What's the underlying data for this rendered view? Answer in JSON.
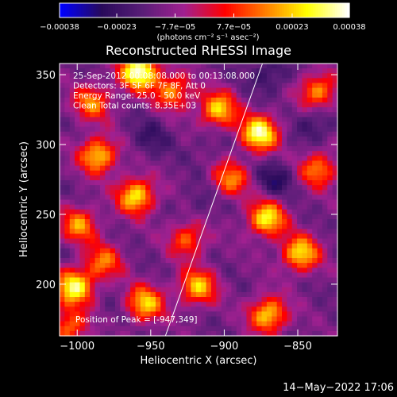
{
  "chart_data": {
    "type": "heatmap",
    "title": "Reconstructed RHESSI Image",
    "xlabel": "Heliocentric X (arcsec)",
    "ylabel": "Heliocentric Y (arcsec)",
    "xlim": [
      -1012,
      -823
    ],
    "ylim": [
      163,
      358
    ],
    "x_ticks": [
      -1000,
      -950,
      -900,
      -850
    ],
    "x_tick_labels": [
      "−1000",
      "−950",
      "−900",
      "−850"
    ],
    "y_ticks": [
      200,
      250,
      300,
      350
    ],
    "y_tick_labels": [
      "200",
      "250",
      "300",
      "350"
    ],
    "colorbar": {
      "min": -0.00038,
      "max": 0.00038,
      "ticks": [
        -0.00038,
        -0.00023,
        -7.7e-05,
        7.7e-05,
        0.00023,
        0.00038
      ],
      "tick_labels": [
        "−0.00038",
        "−0.00023",
        "−7.7e−05",
        "7.7e−05",
        "0.00023",
        "0.00038"
      ],
      "unit_text": "(photons cm⁻² s⁻¹ asec⁻²)",
      "colormap": [
        "#0000ff",
        "#280a5a",
        "#5a1e78",
        "#a02090",
        "#ff0000",
        "#ff8000",
        "#ffff00",
        "#ffffff"
      ]
    },
    "annotations": [
      "25-Sep-2012 00:08:08.000 to 00:13:08.000",
      "Detectors: 3F 5F 6F 7F 8F, Att 0",
      "Energy Range: 25.0 - 50.0 keV",
      "Clean     Total counts: 8.35E+03"
    ],
    "peak_label": "Position of Peak = [-947,349]",
    "limb_line": [
      [
        -940,
        163
      ],
      [
        -874,
        358
      ]
    ],
    "grid": false,
    "hotspots": [
      {
        "x": -958,
        "y": 352,
        "value": 0.00038
      },
      {
        "x": -876,
        "y": 308,
        "value": 0.00034
      },
      {
        "x": -986,
        "y": 292,
        "value": 0.00025
      },
      {
        "x": -904,
        "y": 325,
        "value": 0.00024
      },
      {
        "x": -960,
        "y": 263,
        "value": 0.00027
      },
      {
        "x": -871,
        "y": 247,
        "value": 0.00028
      },
      {
        "x": -848,
        "y": 222,
        "value": 0.00026
      },
      {
        "x": -1002,
        "y": 198,
        "value": 0.00031
      },
      {
        "x": -954,
        "y": 186,
        "value": 0.00024
      },
      {
        "x": -918,
        "y": 198,
        "value": 0.00022
      },
      {
        "x": -870,
        "y": 178,
        "value": 0.00025
      },
      {
        "x": -999,
        "y": 242,
        "value": 0.00018
      },
      {
        "x": -935,
        "y": 338,
        "value": 0.00017
      },
      {
        "x": -990,
        "y": 330,
        "value": 0.00016
      },
      {
        "x": -836,
        "y": 338,
        "value": 0.00018
      },
      {
        "x": -836,
        "y": 282,
        "value": 0.00017
      },
      {
        "x": -896,
        "y": 275,
        "value": 0.00016
      },
      {
        "x": -1005,
        "y": 170,
        "value": 0.00015
      },
      {
        "x": -982,
        "y": 216,
        "value": 0.00014
      },
      {
        "x": -925,
        "y": 232,
        "value": 0.00013
      }
    ],
    "coldspots": [
      {
        "x": -870,
        "y": 350,
        "value": -0.00024
      },
      {
        "x": -950,
        "y": 305,
        "value": -0.00022
      },
      {
        "x": -865,
        "y": 275,
        "value": -0.00026
      },
      {
        "x": -915,
        "y": 260,
        "value": -0.00018
      },
      {
        "x": -838,
        "y": 315,
        "value": -0.00023
      },
      {
        "x": -910,
        "y": 300,
        "value": -0.00016
      },
      {
        "x": -1008,
        "y": 228,
        "value": -0.00014
      },
      {
        "x": -975,
        "y": 178,
        "value": -0.00015
      }
    ]
  },
  "footer": {
    "timestamp": "14−May−2022 17:06"
  }
}
